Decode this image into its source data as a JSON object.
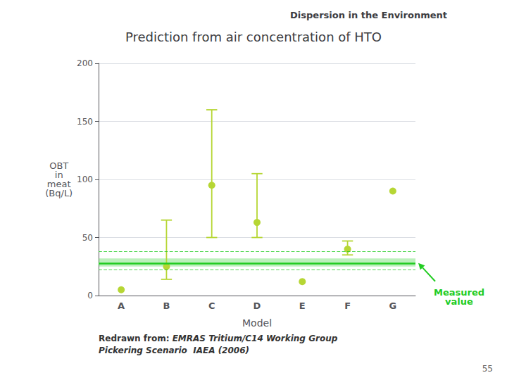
{
  "chart_data": {
    "type": "scatter",
    "title": "Prediction from air concentration of HTO",
    "subtitle": "Dispersion in the Environment",
    "x_label": "Model",
    "y_label": "OBT\nin\nmeat\n(Bq/L)",
    "categories": [
      "A",
      "B",
      "C",
      "D",
      "E",
      "F",
      "G"
    ],
    "values": [
      5,
      25,
      95,
      63,
      12,
      40,
      90
    ],
    "error_lower": [
      5,
      14,
      50,
      50,
      12,
      35,
      90
    ],
    "error_upper": [
      5,
      65,
      160,
      105,
      12,
      47,
      90
    ],
    "measured": {
      "label": "Measured\nvalue",
      "value": 28,
      "band": [
        25,
        32
      ],
      "dashed": [
        38,
        22
      ],
      "color": "#22CC22"
    },
    "source": {
      "prefix": "Redrawn from: ",
      "lines": [
        "EMRAS Tritium/C14 Working Group",
        "Pickering Scenario  IAEA (2006)"
      ]
    },
    "page_number": "55",
    "ylim": [
      0,
      200
    ],
    "yticks": [
      0,
      50,
      100,
      150,
      200
    ],
    "grid": true
  }
}
